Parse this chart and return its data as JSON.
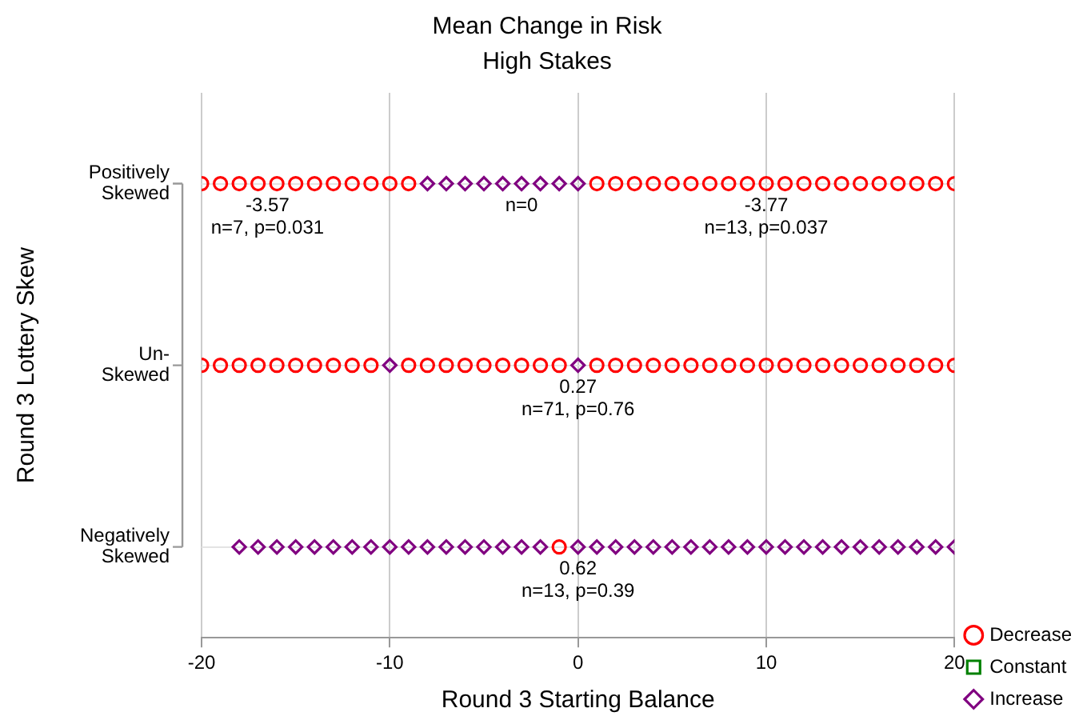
{
  "chart_data": {
    "type": "scatter",
    "orientation": "horizontal",
    "title": "Mean Change in Risk",
    "subtitle": "High Stakes",
    "xlabel": "Round 3 Starting Balance",
    "ylabel": "Round 3 Lottery Skew",
    "categories": [
      "Positively Skewed",
      "Un-Skewed",
      "Negatively Skewed"
    ],
    "xlim": [
      -20,
      20
    ],
    "xticks": [
      -20,
      -10,
      0,
      10,
      20
    ],
    "grid": true,
    "legend": "bottom right",
    "series": [
      {
        "name": "Decrease",
        "color": "#ff0000",
        "marker": "circle",
        "values": [
          -20,
          -19,
          -18,
          -17,
          -16,
          -15,
          -14,
          -13,
          -12,
          -11,
          -10,
          -9,
          1,
          2,
          3,
          4,
          5,
          6,
          7,
          8,
          9,
          10,
          11,
          12,
          13,
          14,
          15,
          16,
          17,
          18,
          19,
          20,
          -20,
          -19,
          -18,
          -17,
          -16,
          -15,
          -14,
          -13,
          -12,
          -11,
          -9,
          -8,
          -7,
          -6,
          -5,
          -4,
          -3,
          -2,
          -1,
          1,
          2,
          3,
          4,
          5,
          6,
          7,
          8,
          9,
          10,
          11,
          12,
          13,
          14,
          15,
          16,
          17,
          18,
          19,
          20,
          -1
        ],
        "x": [
          "Positively Skewed",
          "Positively Skewed",
          "Positively Skewed",
          "Positively Skewed",
          "Positively Skewed",
          "Positively Skewed",
          "Positively Skewed",
          "Positively Skewed",
          "Positively Skewed",
          "Positively Skewed",
          "Positively Skewed",
          "Positively Skewed",
          "Positively Skewed",
          "Positively Skewed",
          "Positively Skewed",
          "Positively Skewed",
          "Positively Skewed",
          "Positively Skewed",
          "Positively Skewed",
          "Positively Skewed",
          "Positively Skewed",
          "Positively Skewed",
          "Positively Skewed",
          "Positively Skewed",
          "Positively Skewed",
          "Positively Skewed",
          "Positively Skewed",
          "Positively Skewed",
          "Positively Skewed",
          "Positively Skewed",
          "Positively Skewed",
          "Positively Skewed",
          "Un-Skewed",
          "Un-Skewed",
          "Un-Skewed",
          "Un-Skewed",
          "Un-Skewed",
          "Un-Skewed",
          "Un-Skewed",
          "Un-Skewed",
          "Un-Skewed",
          "Un-Skewed",
          "Un-Skewed",
          "Un-Skewed",
          "Un-Skewed",
          "Un-Skewed",
          "Un-Skewed",
          "Un-Skewed",
          "Un-Skewed",
          "Un-Skewed",
          "Un-Skewed",
          "Un-Skewed",
          "Un-Skewed",
          "Un-Skewed",
          "Un-Skewed",
          "Un-Skewed",
          "Un-Skewed",
          "Un-Skewed",
          "Un-Skewed",
          "Un-Skewed",
          "Un-Skewed",
          "Un-Skewed",
          "Un-Skewed",
          "Un-Skewed",
          "Un-Skewed",
          "Un-Skewed",
          "Un-Skewed",
          "Un-Skewed",
          "Un-Skewed",
          "Un-Skewed",
          "Un-Skewed",
          "Negatively Skewed"
        ]
      },
      {
        "name": "Constant",
        "color": "#008000",
        "marker": "square",
        "values": [
          null,
          null,
          null
        ]
      },
      {
        "name": "Increase",
        "color": "#800080",
        "marker": "diamond",
        "values": [
          -8,
          -7,
          -6,
          -5,
          -4,
          -3,
          -2,
          -1,
          0,
          -10,
          0,
          -18,
          -17,
          -16,
          -15,
          -14,
          -13,
          -12,
          -11,
          -10,
          -9,
          -8,
          -7,
          -6,
          -5,
          -4,
          -3,
          -2,
          0,
          1,
          2,
          3,
          4,
          5,
          6,
          7,
          8,
          9,
          10,
          11,
          12,
          13,
          14,
          15,
          16,
          17,
          18,
          19,
          20
        ],
        "x": [
          "Positively Skewed",
          "Positively Skewed",
          "Positively Skewed",
          "Positively Skewed",
          "Positively Skewed",
          "Positively Skewed",
          "Positively Skewed",
          "Positively Skewed",
          "Positively Skewed",
          "Un-Skewed",
          "Un-Skewed",
          "Negatively Skewed",
          "Negatively Skewed",
          "Negatively Skewed",
          "Negatively Skewed",
          "Negatively Skewed",
          "Negatively Skewed",
          "Negatively Skewed",
          "Negatively Skewed",
          "Negatively Skewed",
          "Negatively Skewed",
          "Negatively Skewed",
          "Negatively Skewed",
          "Negatively Skewed",
          "Negatively Skewed",
          "Negatively Skewed",
          "Negatively Skewed",
          "Negatively Skewed",
          "Negatively Skewed",
          "Negatively Skewed",
          "Negatively Skewed",
          "Negatively Skewed",
          "Negatively Skewed",
          "Negatively Skewed",
          "Negatively Skewed",
          "Negatively Skewed",
          "Negatively Skewed",
          "Negatively Skewed",
          "Negatively Skewed",
          "Negatively Skewed",
          "Negatively Skewed",
          "Negatively Skewed",
          "Negatively Skewed",
          "Negatively Skewed",
          "Negatively Skewed",
          "Negatively Skewed",
          "Negatively Skewed",
          "Negatively Skewed",
          "Negatively Skewed"
        ]
      }
    ],
    "annotations": [
      {
        "text": "-3.57\nn=7, p=0.031",
        "x": -16.5,
        "y": "Positively Skewed"
      },
      {
        "text": "n=0",
        "x": -3,
        "y": "Positively Skewed"
      },
      {
        "text": "-3.77\nn=13, p=0.037",
        "x": 10,
        "y": "Positively Skewed"
      },
      {
        "text": "0.27\nn=71, p=0.76",
        "x": 0,
        "y": "Un-Skewed"
      },
      {
        "text": "0.62\nn=13, p=0.39",
        "x": 0,
        "y": "Negatively Skewed"
      }
    ]
  }
}
